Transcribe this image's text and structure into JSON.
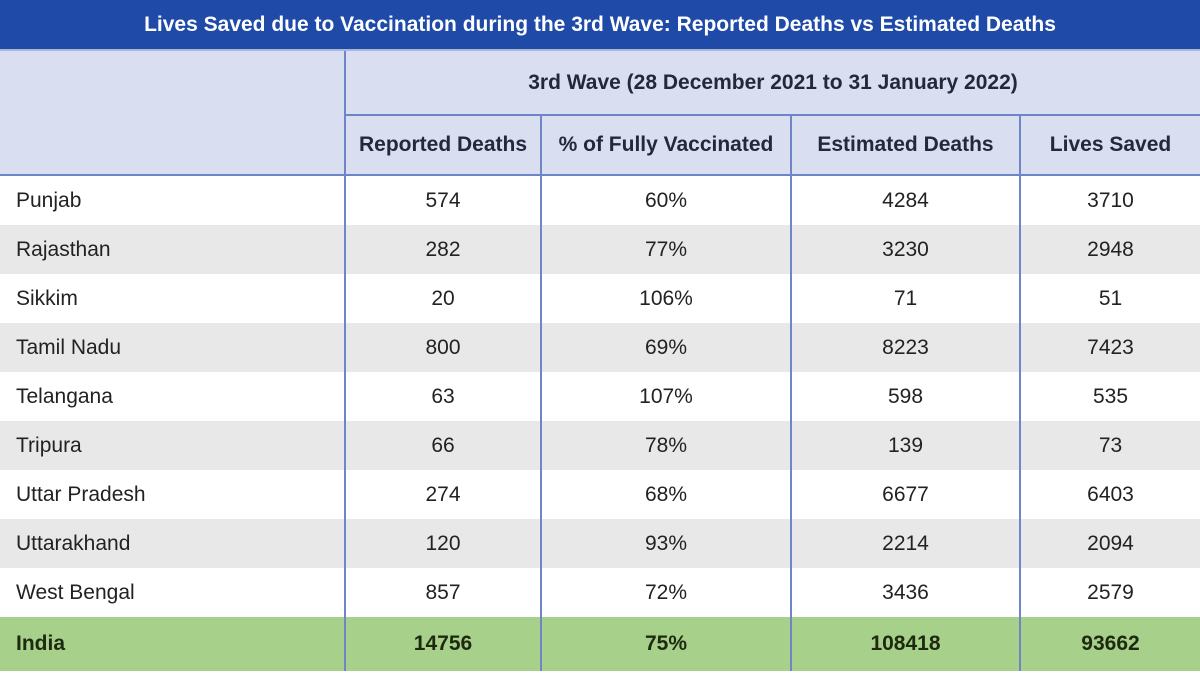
{
  "title": "Lives Saved due to Vaccination during the 3rd Wave: Reported Deaths vs Estimated Deaths",
  "wave_header": "3rd Wave (28 December 2021 to 31 January 2022)",
  "columns": [
    "Reported Deaths",
    "% of Fully Vaccinated",
    "Estimated Deaths",
    "Lives Saved"
  ],
  "rows": [
    {
      "state": "Punjab",
      "reported": "574",
      "vaccinated": "60%",
      "estimated": "4284",
      "saved": "3710"
    },
    {
      "state": "Rajasthan",
      "reported": "282",
      "vaccinated": "77%",
      "estimated": "3230",
      "saved": "2948"
    },
    {
      "state": "Sikkim",
      "reported": "20",
      "vaccinated": "106%",
      "estimated": "71",
      "saved": "51"
    },
    {
      "state": "Tamil Nadu",
      "reported": "800",
      "vaccinated": "69%",
      "estimated": "8223",
      "saved": "7423"
    },
    {
      "state": "Telangana",
      "reported": "63",
      "vaccinated": "107%",
      "estimated": "598",
      "saved": "535"
    },
    {
      "state": "Tripura",
      "reported": "66",
      "vaccinated": "78%",
      "estimated": "139",
      "saved": "73"
    },
    {
      "state": "Uttar Pradesh",
      "reported": "274",
      "vaccinated": "68%",
      "estimated": "6677",
      "saved": "6403"
    },
    {
      "state": "Uttarakhand",
      "reported": "120",
      "vaccinated": "93%",
      "estimated": "2214",
      "saved": "2094"
    },
    {
      "state": "West Bengal",
      "reported": "857",
      "vaccinated": "72%",
      "estimated": "3436",
      "saved": "2579"
    }
  ],
  "total": {
    "state": "India",
    "reported": "14756",
    "vaccinated": "75%",
    "estimated": "108418",
    "saved": "93662"
  },
  "colors": {
    "title_bg": "#1f4aa8",
    "header_bg": "#d9dff0",
    "stripe_bg": "#e8e8e8",
    "total_bg": "#a7d08a",
    "border": "#6d86c8"
  }
}
